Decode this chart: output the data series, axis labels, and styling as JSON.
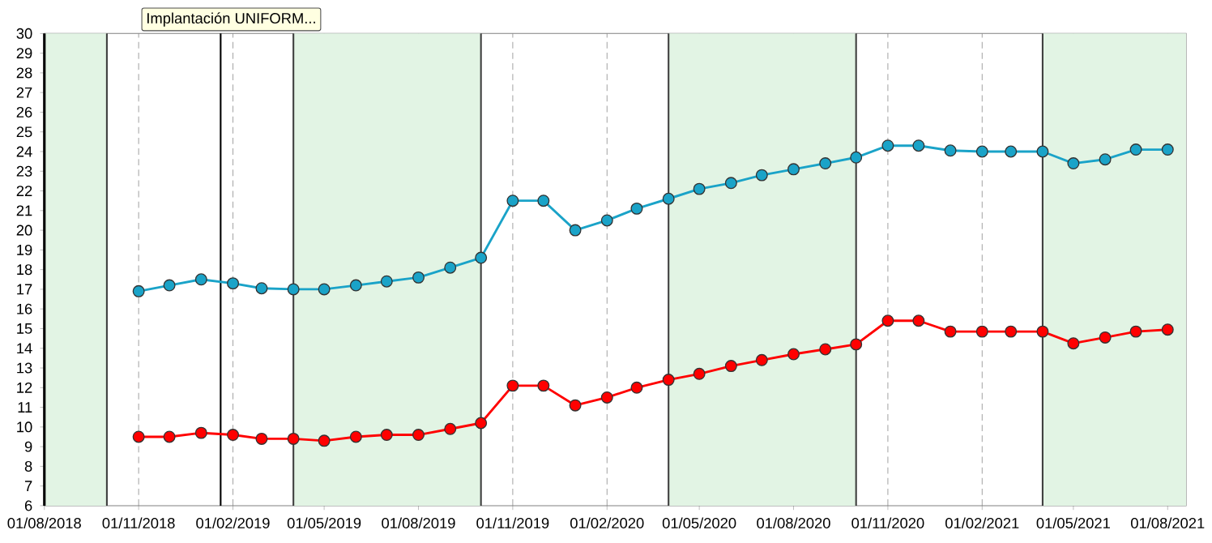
{
  "chart_data": {
    "type": "line",
    "annotations": [
      "Implantación UNIFORM..."
    ],
    "x": [
      "2018-11-01",
      "2018-12-01",
      "2019-01-01",
      "2019-02-01",
      "2019-03-01",
      "2019-04-01",
      "2019-05-01",
      "2019-06-01",
      "2019-07-01",
      "2019-08-01",
      "2019-09-01",
      "2019-10-01",
      "2019-11-01",
      "2019-12-01",
      "2020-01-01",
      "2020-02-01",
      "2020-03-01",
      "2020-04-01",
      "2020-05-01",
      "2020-06-01",
      "2020-07-01",
      "2020-08-01",
      "2020-09-01",
      "2020-10-01",
      "2020-11-01",
      "2020-12-01",
      "2021-01-01",
      "2021-02-01",
      "2021-03-01",
      "2021-04-01",
      "2021-05-01",
      "2021-06-01",
      "2021-07-01",
      "2021-08-01"
    ],
    "series": [
      {
        "color": "#1aa3c8",
        "values": [
          16.9,
          17.2,
          17.5,
          17.3,
          17.05,
          17.0,
          17.0,
          17.2,
          17.4,
          17.6,
          18.1,
          18.6,
          21.5,
          21.5,
          20.0,
          20.5,
          21.1,
          21.6,
          22.1,
          22.4,
          22.8,
          23.1,
          23.4,
          23.7,
          24.3,
          24.3,
          24.05,
          24.0,
          24.0,
          24.0,
          23.4,
          23.6,
          24.1,
          24.1
        ]
      },
      {
        "color": "#ff0000",
        "values": [
          9.5,
          9.5,
          9.7,
          9.6,
          9.4,
          9.4,
          9.3,
          9.5,
          9.6,
          9.6,
          9.9,
          10.2,
          12.1,
          12.1,
          11.1,
          11.5,
          12.0,
          12.4,
          12.7,
          13.1,
          13.4,
          13.7,
          13.95,
          14.2,
          15.4,
          15.4,
          14.85,
          14.85,
          14.85,
          14.85,
          14.25,
          14.55,
          14.85,
          14.95
        ]
      }
    ],
    "xlim": [
      "2018-08-01",
      "2021-08-19"
    ],
    "ylim": [
      6,
      30
    ],
    "xticks": [
      {
        "value": "2018-08-01",
        "label": "01/08/2018"
      },
      {
        "value": "2018-11-01",
        "label": "01/11/2018"
      },
      {
        "value": "2019-02-01",
        "label": "01/02/2019"
      },
      {
        "value": "2019-05-01",
        "label": "01/05/2019"
      },
      {
        "value": "2019-08-01",
        "label": "01/08/2019"
      },
      {
        "value": "2019-11-01",
        "label": "01/11/2019"
      },
      {
        "value": "2020-02-01",
        "label": "01/02/2020"
      },
      {
        "value": "2020-05-01",
        "label": "01/05/2020"
      },
      {
        "value": "2020-08-01",
        "label": "01/08/2020"
      },
      {
        "value": "2020-11-01",
        "label": "01/11/2020"
      },
      {
        "value": "2021-02-01",
        "label": "01/02/2021"
      },
      {
        "value": "2021-05-01",
        "label": "01/05/2021"
      },
      {
        "value": "2021-08-01",
        "label": "01/08/2021"
      }
    ],
    "yticks": [
      6,
      7,
      8,
      9,
      10,
      11,
      12,
      13,
      14,
      15,
      16,
      17,
      18,
      19,
      20,
      21,
      22,
      23,
      24,
      25,
      26,
      27,
      28,
      29,
      30
    ],
    "bands": [
      {
        "axis": "x",
        "from": "2018-08-01",
        "to": "2018-10-01",
        "color": "#e2f4e4"
      },
      {
        "axis": "x",
        "from": "2019-04-01",
        "to": "2019-10-01",
        "color": "#e2f4e4"
      },
      {
        "axis": "x",
        "from": "2020-04-01",
        "to": "2020-10-01",
        "color": "#e2f4e4"
      },
      {
        "axis": "x",
        "from": "2021-04-01",
        "to": "2021-08-19",
        "color": "#e2f4e4"
      }
    ],
    "ref_lines": [
      {
        "axis": "x",
        "value": "2019-01-20",
        "color": "#000000"
      }
    ],
    "grid": "x",
    "marker": "circle",
    "line_style": "solid"
  }
}
